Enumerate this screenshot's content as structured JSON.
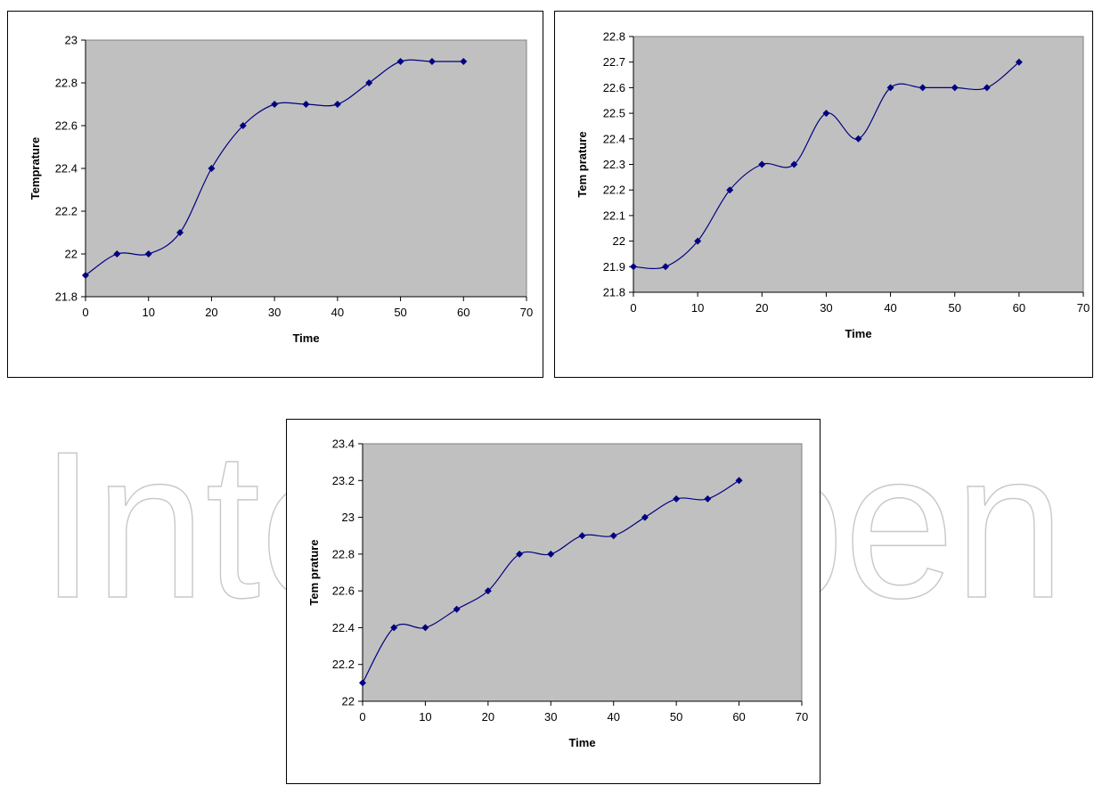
{
  "watermark": {
    "text": "IntechOpen",
    "color": "#c8c8c8"
  },
  "style": {
    "plot_background": "#c0c0c0",
    "line_color": "#000080",
    "marker_color": "#000080"
  },
  "chart_data": [
    {
      "type": "line",
      "xlabel": "Time",
      "ylabel": "Temprature",
      "xlim": [
        0,
        70
      ],
      "ylim": [
        21.8,
        23
      ],
      "xticks": [
        "0",
        "10",
        "20",
        "30",
        "40",
        "50",
        "60",
        "70"
      ],
      "yticks": [
        "21.8",
        "22",
        "22.2",
        "22.4",
        "22.6",
        "22.8",
        "23"
      ],
      "grid": false,
      "legend": "none",
      "smoothed": true,
      "marker": "diamond",
      "series": [
        {
          "x": [
            0,
            5,
            10,
            15,
            20,
            25,
            30,
            35,
            40,
            45,
            50,
            55,
            60
          ],
          "y": [
            21.9,
            22.0,
            22.0,
            22.1,
            22.4,
            22.6,
            22.7,
            22.7,
            22.7,
            22.8,
            22.9,
            22.9,
            22.9
          ]
        }
      ]
    },
    {
      "type": "line",
      "xlabel": "Time",
      "ylabel": "Tem prature",
      "xlim": [
        0,
        70
      ],
      "ylim": [
        21.8,
        22.8
      ],
      "xticks": [
        "0",
        "10",
        "20",
        "30",
        "40",
        "50",
        "60",
        "70"
      ],
      "yticks": [
        "21.8",
        "21.9",
        "22",
        "22.1",
        "22.2",
        "22.3",
        "22.4",
        "22.5",
        "22.6",
        "22.7",
        "22.8"
      ],
      "grid": false,
      "legend": "none",
      "smoothed": true,
      "marker": "diamond",
      "series": [
        {
          "x": [
            0,
            5,
            10,
            15,
            20,
            25,
            30,
            35,
            40,
            45,
            50,
            55,
            60
          ],
          "y": [
            21.9,
            21.9,
            22.0,
            22.2,
            22.3,
            22.3,
            22.5,
            22.4,
            22.6,
            22.6,
            22.6,
            22.6,
            22.7
          ]
        }
      ]
    },
    {
      "type": "line",
      "xlabel": "Time",
      "ylabel": "Tem prature",
      "xlim": [
        0,
        70
      ],
      "ylim": [
        22,
        23.4
      ],
      "xticks": [
        "0",
        "10",
        "20",
        "30",
        "40",
        "50",
        "60",
        "70"
      ],
      "yticks": [
        "22",
        "22.2",
        "22.4",
        "22.6",
        "22.8",
        "23",
        "23.2",
        "23.4"
      ],
      "grid": false,
      "legend": "none",
      "smoothed": true,
      "marker": "diamond",
      "series": [
        {
          "x": [
            0,
            5,
            10,
            15,
            20,
            25,
            30,
            35,
            40,
            45,
            50,
            55,
            60
          ],
          "y": [
            22.1,
            22.4,
            22.4,
            22.5,
            22.6,
            22.8,
            22.8,
            22.9,
            22.9,
            23.0,
            23.1,
            23.1,
            23.2
          ]
        }
      ]
    }
  ]
}
